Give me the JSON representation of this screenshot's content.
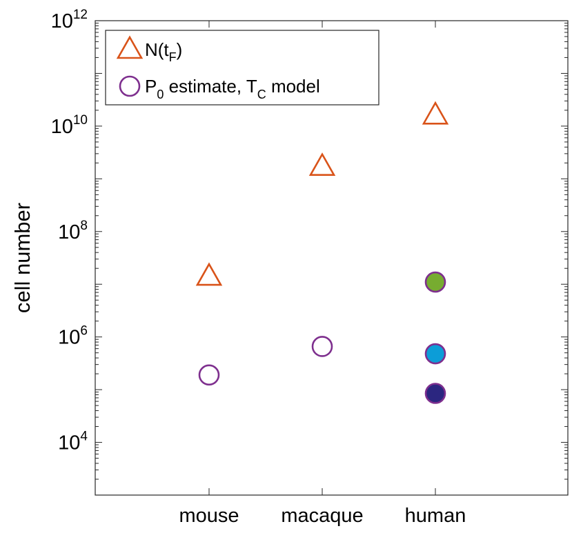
{
  "chart_data": {
    "type": "scatter",
    "title": "",
    "xlabel": "",
    "ylabel": "cell number",
    "categories": [
      "mouse",
      "macaque",
      "human"
    ],
    "y_scale": "log",
    "ylim": [
      1000,
      1000000000000
    ],
    "ytick_values": [
      10000,
      1000000,
      100000000,
      10000000000,
      1000000000000
    ],
    "ytick_labels": [
      {
        "base": "10",
        "exp": "4"
      },
      {
        "base": "10",
        "exp": "6"
      },
      {
        "base": "10",
        "exp": "8"
      },
      {
        "base": "10",
        "exp": "10"
      },
      {
        "base": "10",
        "exp": "12"
      }
    ],
    "grid": false,
    "legend_position": "top-left",
    "series": [
      {
        "name": "N(t_F)",
        "legend_main": "N(t",
        "legend_sub": "F",
        "legend_tail": ")",
        "marker": "triangle-open",
        "color": "#d95319",
        "points": [
          {
            "category": "mouse",
            "y": 14000000
          },
          {
            "category": "macaque",
            "y": 1700000000
          },
          {
            "category": "human",
            "y": 16000000000
          }
        ]
      },
      {
        "name": "P_0 estimate, T_C model",
        "legend_parts": [
          {
            "text": "P",
            "sub": false
          },
          {
            "text": "0",
            "sub": true
          },
          {
            "text": " estimate, T",
            "sub": false
          },
          {
            "text": "C",
            "sub": true
          },
          {
            "text": " model",
            "sub": false
          }
        ],
        "marker": "circle-open",
        "color": "#7e2f8e",
        "points": [
          {
            "category": "mouse",
            "y": 190000
          },
          {
            "category": "macaque",
            "y": 660000
          },
          {
            "category": "human",
            "y": 11000000,
            "fill": "#77ac30"
          },
          {
            "category": "human",
            "y": 480000,
            "fill": "#0c9dd8"
          },
          {
            "category": "human",
            "y": 85000,
            "fill": "#2b2680"
          }
        ]
      }
    ]
  }
}
